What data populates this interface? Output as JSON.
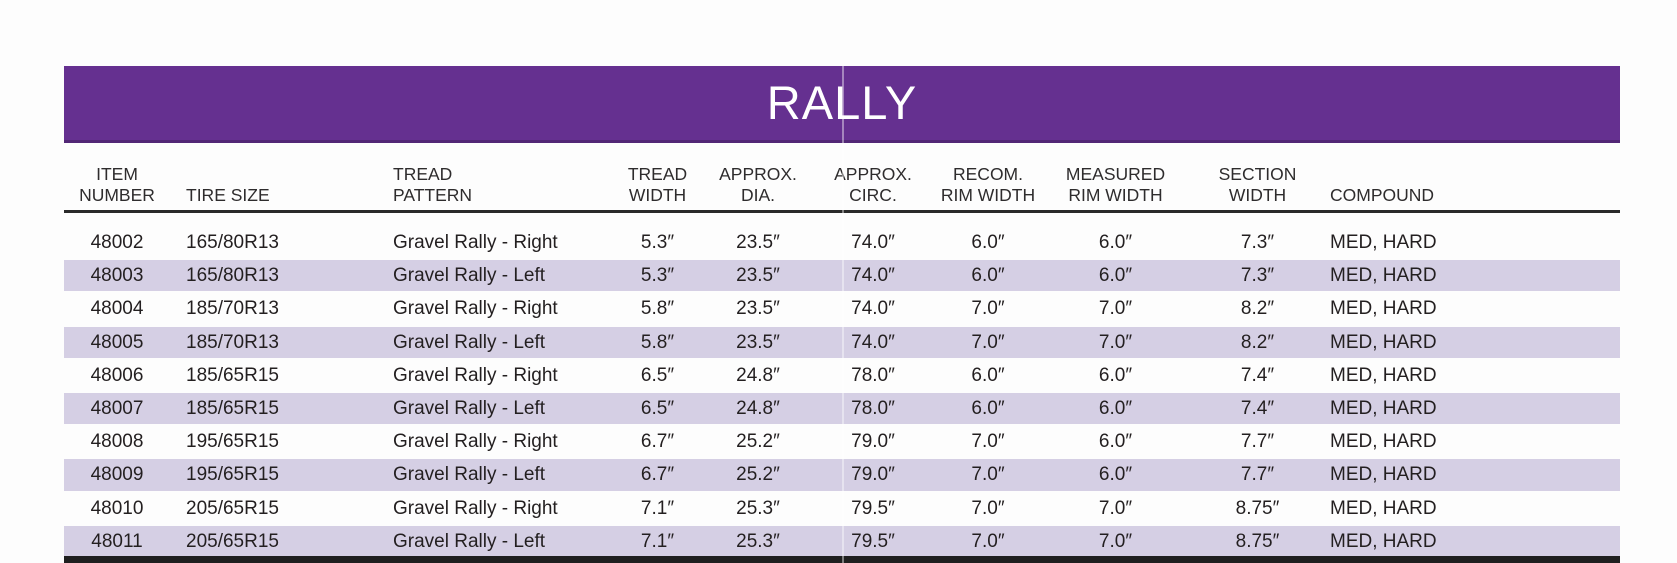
{
  "title": "RALLY",
  "colors": {
    "header_bar": "#653090",
    "row_stripe": "#d5cfe4"
  },
  "table": {
    "columns": [
      {
        "label": "ITEM\nNUMBER"
      },
      {
        "label": "TIRE SIZE"
      },
      {
        "label": "TREAD\nPATTERN"
      },
      {
        "label": "TREAD\nWIDTH"
      },
      {
        "label": "APPROX.\nDIA."
      },
      {
        "label": "APPROX.\nCIRC."
      },
      {
        "label": "RECOM.\nRIM WIDTH"
      },
      {
        "label": "MEASURED\nRIM WIDTH"
      },
      {
        "label": "SECTION\nWIDTH"
      },
      {
        "label": "COMPOUND"
      }
    ],
    "rows": [
      [
        "48002",
        "165/80R13",
        "Gravel Rally - Right",
        "5.3″",
        "23.5″",
        "74.0″",
        "6.0″",
        "6.0″",
        "7.3″",
        "MED, HARD"
      ],
      [
        "48003",
        "165/80R13",
        "Gravel Rally - Left",
        "5.3″",
        "23.5″",
        "74.0″",
        "6.0″",
        "6.0″",
        "7.3″",
        "MED, HARD"
      ],
      [
        "48004",
        "185/70R13",
        "Gravel Rally - Right",
        "5.8″",
        "23.5″",
        "74.0″",
        "7.0″",
        "7.0″",
        "8.2″",
        "MED, HARD"
      ],
      [
        "48005",
        "185/70R13",
        "Gravel Rally - Left",
        "5.8″",
        "23.5″",
        "74.0″",
        "7.0″",
        "7.0″",
        "8.2″",
        "MED, HARD"
      ],
      [
        "48006",
        "185/65R15",
        "Gravel Rally - Right",
        "6.5″",
        "24.8″",
        "78.0″",
        "6.0″",
        "6.0″",
        "7.4″",
        "MED, HARD"
      ],
      [
        "48007",
        "185/65R15",
        "Gravel Rally - Left",
        "6.5″",
        "24.8″",
        "78.0″",
        "6.0″",
        "6.0″",
        "7.4″",
        "MED, HARD"
      ],
      [
        "48008",
        "195/65R15",
        "Gravel Rally - Right",
        "6.7″",
        "25.2″",
        "79.0″",
        "7.0″",
        "6.0″",
        "7.7″",
        "MED, HARD"
      ],
      [
        "48009",
        "195/65R15",
        "Gravel Rally - Left",
        "6.7″",
        "25.2″",
        "79.0″",
        "7.0″",
        "6.0″",
        "7.7″",
        "MED, HARD"
      ],
      [
        "48010",
        "205/65R15",
        "Gravel Rally - Right",
        "7.1″",
        "25.3″",
        "79.5″",
        "7.0″",
        "7.0″",
        "8.75″",
        "MED, HARD"
      ],
      [
        "48011",
        "205/65R15",
        "Gravel Rally - Left",
        "7.1″",
        "25.3″",
        "79.5″",
        "7.0″",
        "7.0″",
        "8.75″",
        "MED, HARD"
      ]
    ]
  }
}
